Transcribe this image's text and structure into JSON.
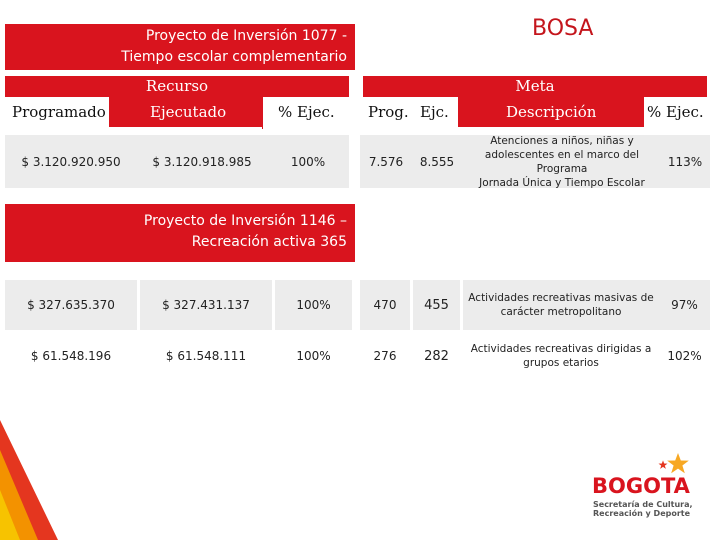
{
  "projects": [
    {
      "title_line1": "Proyecto de Inversión 1077 -",
      "title_line2": "Tiempo escolar complementario"
    },
    {
      "title_line1": "Proyecto de Inversión 1146 –",
      "title_line2": "Recreación activa 365"
    }
  ],
  "locality": "BOSA",
  "headers": {
    "recurso": "Recurso",
    "programado": "Programado",
    "ejecutado": "Ejecutado",
    "pct_ejec_left": "% Ejec.",
    "meta": "Meta",
    "prog": "Prog.",
    "ejc": "Ejc.",
    "descripcion": "Descripción",
    "pct_ejec_right": "% Ejec."
  },
  "rows": [
    {
      "programado": "$ 3.120.920.950",
      "ejecutado": "$ 3.120.918.985",
      "pct": "100%",
      "prog": "7.576",
      "ejc": "8.555",
      "desc_line1": "Atenciones a niños, niñas y",
      "desc_line2": "adolescentes en el marco del Programa",
      "desc_line3": "Jornada Única y Tiempo Escolar",
      "meta_pct": "113%"
    },
    {
      "programado": "$ 327.635.370",
      "ejecutado": "$ 327.431.137",
      "pct": "100%",
      "prog": "470",
      "ejc": "455",
      "desc_line1": "Actividades recreativas masivas de",
      "desc_line2": "carácter metropolitano",
      "meta_pct": "97%"
    },
    {
      "programado": "$ 61.548.196",
      "ejecutado": "$ 61.548.111",
      "pct": "100%",
      "prog": "276",
      "ejc": "282",
      "desc_line1": "Actividades recreativas dirigidas a",
      "desc_line2": "grupos etarios",
      "meta_pct": "102%"
    }
  ],
  "logo": {
    "word": "BOGOTA",
    "sub_line1": "Secretaría de Cultura,",
    "sub_line2": "Recreación y Deporte"
  },
  "colors": {
    "brand_red": "#d9141e",
    "row_gray": "#ececec",
    "accent_orange": "#f39200",
    "star_yellow": "#f7a823"
  }
}
